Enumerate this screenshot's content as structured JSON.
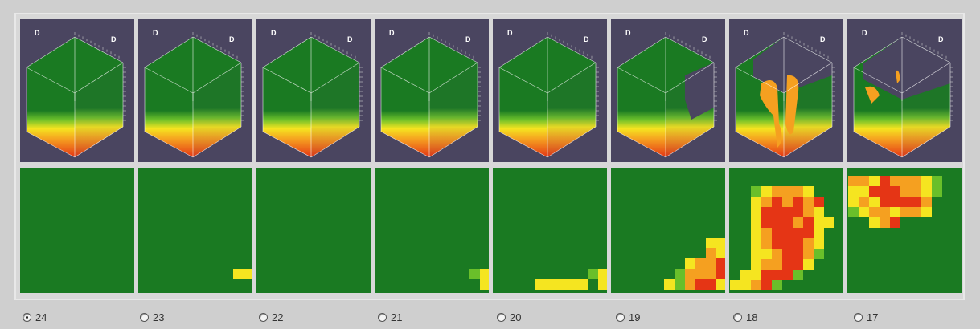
{
  "panels": [
    {
      "label": "24",
      "selected": true
    },
    {
      "label": "23",
      "selected": false
    },
    {
      "label": "22",
      "selected": false
    },
    {
      "label": "21",
      "selected": false
    },
    {
      "label": "20",
      "selected": false
    },
    {
      "label": "19",
      "selected": false
    },
    {
      "label": "18",
      "selected": false
    },
    {
      "label": "17",
      "selected": false
    }
  ],
  "axis_letter": "D",
  "colors": {
    "background": "#4a4560",
    "green": "#1a7a22",
    "light_green": "#6abf2a",
    "yellow": "#f5e520",
    "orange": "#f5a020",
    "red": "#e53515"
  }
}
